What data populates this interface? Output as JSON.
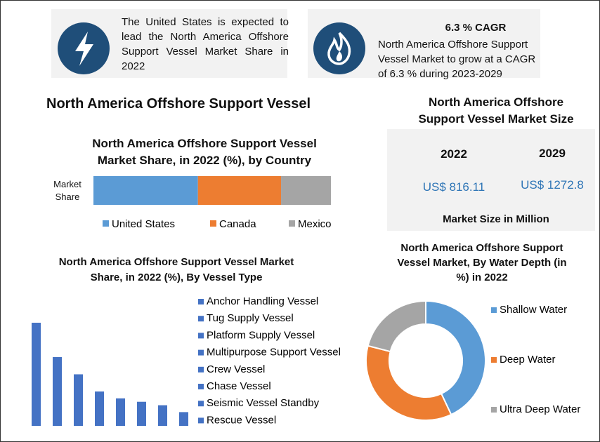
{
  "cards": [
    {
      "text": "The United States is expected to lead the North America Offshore Support Vessel Market Share in 2022"
    },
    {
      "title": "6.3 % CAGR",
      "text": "North America Offshore Support Vessel Market to grow at a CAGR of 6.3 % during 2023-2029"
    }
  ],
  "title": "North America Offshore Support Vessel",
  "market_size": {
    "title": "North America Offshore Support Vessel Market Size",
    "years": [
      "2022",
      "2029"
    ],
    "values": [
      "US$ 816.11",
      "US$ 1272.8"
    ],
    "footer": "Market Size in Million"
  },
  "chart_data": [
    {
      "type": "stacked-bar",
      "title": "North America Offshore Support Vessel Market Share, in 2022 (%), by Country",
      "categories": [
        "Market Share"
      ],
      "series": [
        {
          "name": "United States",
          "color": "#5b9bd5",
          "values": [
            44
          ]
        },
        {
          "name": "Canada",
          "color": "#ed7d31",
          "values": [
            35
          ]
        },
        {
          "name": "Mexico",
          "color": "#a5a5a5",
          "values": [
            21
          ]
        }
      ]
    },
    {
      "type": "bar",
      "title": "North America Offshore Support Vessel Market Share, in 2022 (%), By Vessel Type",
      "categories": [
        "Anchor Handling Vessel",
        "Tug Supply Vessel",
        "Platform Supply Vessel",
        "Multipurpose Support Vessel",
        "Crew Vessel",
        "Chase Vessel",
        "Seismic Vessel Standby",
        "Rescue Vessel"
      ],
      "values": [
        30,
        20,
        15,
        10,
        8,
        7,
        6,
        4
      ],
      "color": "#4472c4"
    },
    {
      "type": "donut",
      "title": "North America Offshore Support Vessel Market, By Water Depth (in %) in 2022",
      "categories": [
        "Shallow Water",
        "Deep Water",
        "Ultra Deep Water"
      ],
      "values": [
        43,
        36,
        21
      ],
      "colors": [
        "#5b9bd5",
        "#ed7d31",
        "#a5a5a5"
      ]
    }
  ]
}
